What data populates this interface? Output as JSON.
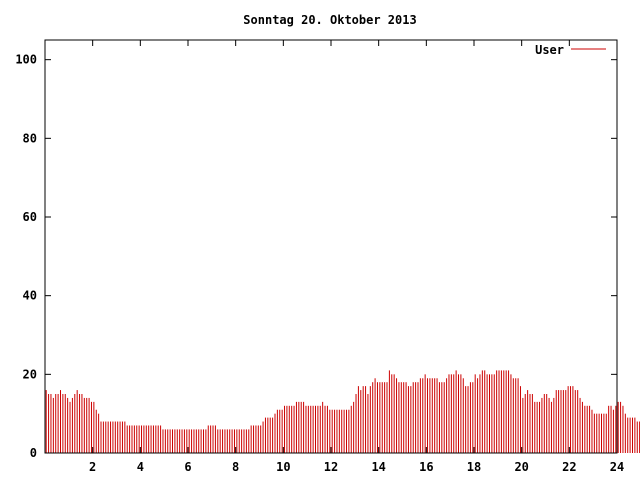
{
  "chart_data": {
    "type": "bar",
    "title": "Sonntag 20. Oktober 2013",
    "xlabel": "",
    "ylabel": "",
    "xlim": [
      0,
      24
    ],
    "ylim": [
      0,
      105
    ],
    "x_ticks": [
      2,
      4,
      6,
      8,
      10,
      12,
      14,
      16,
      18,
      20,
      22,
      24
    ],
    "y_ticks": [
      0,
      20,
      40,
      60,
      80,
      100
    ],
    "grid": false,
    "legend_position": "top-right",
    "bar_interval_hours": 0.1,
    "series": [
      {
        "name": "User",
        "color": "#cc0000",
        "values": [
          16,
          15,
          15,
          14,
          15,
          15,
          16,
          15,
          15,
          14,
          13,
          14,
          15,
          16,
          15,
          15,
          14,
          14,
          14,
          13,
          13,
          11,
          10,
          8,
          8,
          8,
          8,
          8,
          8,
          8,
          8,
          8,
          8,
          8,
          7,
          7,
          7,
          7,
          7,
          7,
          7,
          7,
          7,
          7,
          7,
          7,
          7,
          7,
          7,
          6,
          6,
          6,
          6,
          6,
          6,
          6,
          6,
          6,
          6,
          6,
          6,
          6,
          6,
          6,
          6,
          6,
          6,
          6,
          7,
          7,
          7,
          7,
          6,
          6,
          6,
          6,
          6,
          6,
          6,
          6,
          6,
          6,
          6,
          6,
          6,
          6,
          7,
          7,
          7,
          7,
          7,
          8,
          9,
          9,
          9,
          9,
          10,
          11,
          11,
          11,
          12,
          12,
          12,
          12,
          12,
          13,
          13,
          13,
          13,
          12,
          12,
          12,
          12,
          12,
          12,
          12,
          13,
          12,
          12,
          11,
          11,
          11,
          11,
          11,
          11,
          11,
          11,
          11,
          12,
          13,
          15,
          17,
          16,
          17,
          17,
          15,
          17,
          18,
          19,
          18,
          18,
          18,
          18,
          18,
          21,
          20,
          20,
          19,
          18,
          18,
          18,
          18,
          17,
          17,
          18,
          18,
          18,
          19,
          19,
          20,
          19,
          19,
          19,
          19,
          19,
          18,
          18,
          18,
          19,
          20,
          20,
          20,
          21,
          20,
          20,
          19,
          17,
          17,
          18,
          18,
          20,
          19,
          20,
          21,
          21,
          20,
          20,
          20,
          20,
          21,
          21,
          21,
          21,
          21,
          21,
          20,
          19,
          19,
          19,
          17,
          14,
          15,
          16,
          15,
          15,
          13,
          13,
          13,
          14,
          15,
          15,
          14,
          13,
          14,
          16,
          16,
          16,
          16,
          16,
          17,
          17,
          17,
          16,
          16,
          14,
          13,
          12,
          12,
          12,
          11,
          10,
          10,
          10,
          10,
          10,
          10,
          12,
          12,
          11,
          12,
          13,
          13,
          12,
          10,
          9,
          9,
          9,
          9,
          8,
          8,
          8,
          7,
          7,
          7
        ]
      }
    ]
  }
}
